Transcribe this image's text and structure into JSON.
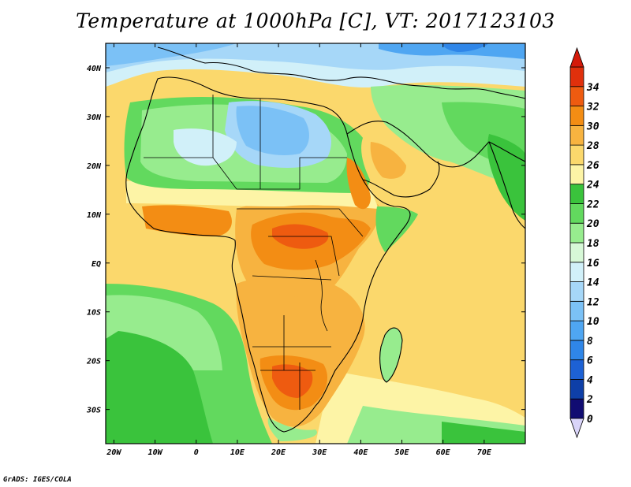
{
  "title": "Temperature at 1000hPa [C], VT: 2017123103",
  "credit": "GrADS: IGES/COLA",
  "map": {
    "lon_range": [
      -22,
      80
    ],
    "lat_range": [
      -37,
      45
    ],
    "lat_ticks": [
      {
        "lat": 40,
        "label": "40N"
      },
      {
        "lat": 30,
        "label": "30N"
      },
      {
        "lat": 20,
        "label": "20N"
      },
      {
        "lat": 10,
        "label": "10N"
      },
      {
        "lat": 0,
        "label": "EQ"
      },
      {
        "lat": -10,
        "label": "10S"
      },
      {
        "lat": -20,
        "label": "20S"
      },
      {
        "lat": -30,
        "label": "30S"
      }
    ],
    "lon_ticks": [
      {
        "lon": -20,
        "label": "20W"
      },
      {
        "lon": -10,
        "label": "10W"
      },
      {
        "lon": 0,
        "label": "0"
      },
      {
        "lon": 10,
        "label": "10E"
      },
      {
        "lon": 20,
        "label": "20E"
      },
      {
        "lon": 30,
        "label": "30E"
      },
      {
        "lon": 40,
        "label": "40E"
      },
      {
        "lon": 50,
        "label": "50E"
      },
      {
        "lon": 60,
        "label": "60E"
      },
      {
        "lon": 70,
        "label": "70E"
      }
    ]
  },
  "colorbar": {
    "levels": [
      0,
      2,
      4,
      6,
      8,
      10,
      12,
      14,
      16,
      18,
      20,
      22,
      24,
      26,
      28,
      30,
      32,
      34
    ],
    "colors": [
      "#110c72",
      "#0e3fa8",
      "#1d61d4",
      "#2f86e8",
      "#4fa6f2",
      "#7bc1f6",
      "#a6d7f8",
      "#d1f0f9",
      "#d7f8d7",
      "#97ec8e",
      "#62d95e",
      "#3ac33c",
      "#fdf4a6",
      "#fbd86c",
      "#f7b340",
      "#f38d14",
      "#ee5b10",
      "#e0300c"
    ],
    "low_triangle_color": "#d9d4f9",
    "high_triangle_color": "#d41a0a"
  }
}
